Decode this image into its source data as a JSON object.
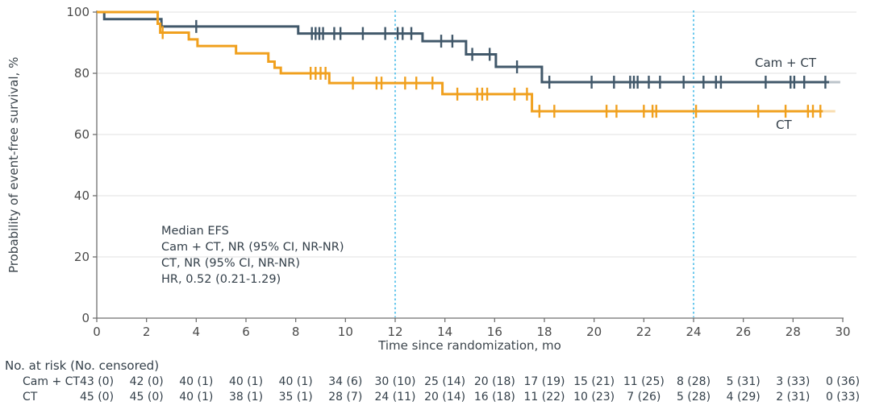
{
  "chart_data": {
    "type": "line",
    "subtype": "kaplan_meier_step",
    "title": "",
    "xlabel": "Time since randomization, mo",
    "ylabel": "Probability of event-free survival, %",
    "xlim": [
      0,
      30
    ],
    "ylim": [
      0,
      100
    ],
    "xticks": [
      0,
      2,
      4,
      6,
      8,
      10,
      12,
      14,
      16,
      18,
      20,
      22,
      24,
      26,
      28,
      30
    ],
    "yticks": [
      0,
      20,
      40,
      60,
      80,
      100
    ],
    "grid": true,
    "reference_lines_x": [
      12,
      24
    ],
    "reference_line_color": "#5ac3eb",
    "grid_color": "#e2e2e2",
    "axis_color": "#6f6f6f",
    "annotation": {
      "lines": [
        "Median EFS",
        "Cam + CT, NR (95% CI, NR-NR)",
        "CT, NR (95% CI, NR-NR)",
        "HR, 0.52 (0.21-1.29)"
      ]
    },
    "series": [
      {
        "name": "Cam + CT",
        "color": "#41586a",
        "start": [
          0,
          100
        ],
        "drops": [
          [
            0.3,
            97.7
          ],
          [
            2.6,
            95.3
          ],
          [
            8.1,
            93.0
          ],
          [
            13.1,
            90.5
          ],
          [
            14.85,
            86.2
          ],
          [
            16.05,
            82.1
          ],
          [
            17.9,
            77.1
          ]
        ],
        "end_time": 29.45,
        "tail_to": 29.9,
        "censors": [
          [
            4.0,
            95.3
          ],
          [
            8.65,
            93.0
          ],
          [
            8.8,
            93.0
          ],
          [
            8.95,
            93.0
          ],
          [
            9.1,
            93.0
          ],
          [
            9.55,
            93.0
          ],
          [
            9.8,
            93.0
          ],
          [
            10.7,
            93.0
          ],
          [
            11.6,
            93.0
          ],
          [
            12.1,
            93.0
          ],
          [
            12.3,
            93.0
          ],
          [
            12.65,
            93.0
          ],
          [
            13.85,
            90.5
          ],
          [
            14.3,
            90.5
          ],
          [
            15.1,
            86.2
          ],
          [
            15.8,
            86.2
          ],
          [
            16.9,
            82.1
          ],
          [
            18.2,
            77.1
          ],
          [
            19.9,
            77.1
          ],
          [
            20.8,
            77.1
          ],
          [
            21.45,
            77.1
          ],
          [
            21.6,
            77.1
          ],
          [
            21.75,
            77.1
          ],
          [
            22.2,
            77.1
          ],
          [
            22.65,
            77.1
          ],
          [
            23.6,
            77.1
          ],
          [
            24.4,
            77.1
          ],
          [
            24.9,
            77.1
          ],
          [
            25.1,
            77.1
          ],
          [
            26.9,
            77.1
          ],
          [
            27.9,
            77.1
          ],
          [
            28.05,
            77.1
          ],
          [
            28.45,
            77.1
          ],
          [
            29.3,
            77.1
          ]
        ]
      },
      {
        "name": "CT",
        "color": "#f0a01e",
        "start": [
          0,
          100
        ],
        "drops": [
          [
            2.45,
            96.2
          ],
          [
            2.55,
            93.3
          ],
          [
            3.7,
            91.1
          ],
          [
            4.05,
            88.9
          ],
          [
            5.6,
            86.5
          ],
          [
            6.9,
            83.8
          ],
          [
            7.15,
            81.8
          ],
          [
            7.4,
            80.0
          ],
          [
            9.35,
            76.8
          ],
          [
            13.9,
            73.2
          ],
          [
            17.5,
            67.6
          ]
        ],
        "end_time": 29.2,
        "tail_to": 29.7,
        "censors": [
          [
            2.65,
            93.3
          ],
          [
            8.6,
            80.0
          ],
          [
            8.8,
            80.0
          ],
          [
            9.0,
            80.0
          ],
          [
            9.2,
            80.0
          ],
          [
            10.3,
            76.8
          ],
          [
            11.25,
            76.8
          ],
          [
            11.45,
            76.8
          ],
          [
            12.4,
            76.8
          ],
          [
            12.85,
            76.8
          ],
          [
            13.5,
            76.8
          ],
          [
            14.5,
            73.2
          ],
          [
            15.3,
            73.2
          ],
          [
            15.5,
            73.2
          ],
          [
            15.7,
            73.2
          ],
          [
            16.8,
            73.2
          ],
          [
            17.3,
            73.2
          ],
          [
            17.8,
            67.6
          ],
          [
            18.4,
            67.6
          ],
          [
            20.5,
            67.6
          ],
          [
            20.9,
            67.6
          ],
          [
            22.0,
            67.6
          ],
          [
            22.35,
            67.6
          ],
          [
            22.5,
            67.6
          ],
          [
            24.1,
            67.6
          ],
          [
            26.6,
            67.6
          ],
          [
            27.7,
            67.6
          ],
          [
            28.6,
            67.6
          ],
          [
            28.8,
            67.6
          ],
          [
            29.1,
            67.6
          ]
        ]
      }
    ],
    "risk_table": {
      "title": "No. at risk (No. censored)",
      "times": [
        0,
        2,
        4,
        6,
        8,
        10,
        12,
        14,
        16,
        18,
        20,
        22,
        24,
        26,
        28,
        30
      ],
      "rows": [
        {
          "label": "Cam + CT",
          "values": [
            "43 (0)",
            "42 (0)",
            "40 (1)",
            "40 (1)",
            "40 (1)",
            "34 (6)",
            "30 (10)",
            "25 (14)",
            "20 (18)",
            "17 (19)",
            "15 (21)",
            "11 (25)",
            "8 (28)",
            "5 (31)",
            "3 (33)",
            "0 (36)"
          ]
        },
        {
          "label": "CT",
          "values": [
            "45 (0)",
            "45 (0)",
            "40 (1)",
            "38 (1)",
            "35 (1)",
            "28 (7)",
            "24 (11)",
            "20 (14)",
            "16 (18)",
            "11 (22)",
            "10 (23)",
            "7 (26)",
            "5 (28)",
            "4 (29)",
            "2 (31)",
            "0 (33)"
          ]
        }
      ]
    }
  }
}
